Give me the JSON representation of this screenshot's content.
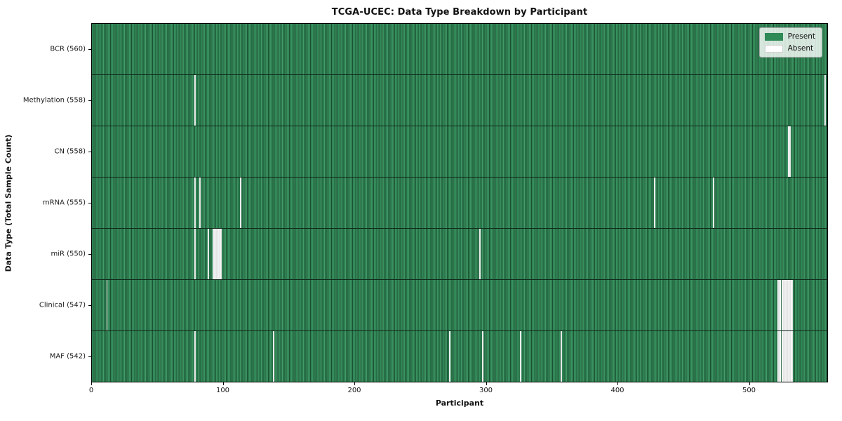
{
  "title": "TCGA-UCEC: Data Type Breakdown by Participant",
  "axes": {
    "xlabel": "Participant",
    "ylabel": "Data Type (Total Sample Count)"
  },
  "legend": [
    {
      "label": "Present",
      "color": "#2e8b57"
    },
    {
      "label": "Absent",
      "color": "#ffffff"
    }
  ],
  "colors": {
    "present_fill": "#2e8b57",
    "cell_edge": "#1a4f31",
    "absent_fill": "#ffffff",
    "row_divider": "#10291a",
    "axes_border": "#000000"
  },
  "chart_data": {
    "type": "heatmap",
    "title": "TCGA-UCEC: Data Type Breakdown by Participant",
    "xlabel": "Participant",
    "ylabel": "Data Type (Total Sample Count)",
    "legend_position": "upper right",
    "n_participants": 560,
    "xlim": [
      0,
      560
    ],
    "x_ticks": [
      0,
      100,
      200,
      300,
      400,
      500
    ],
    "cell_values": "1 = Present (green), 0 = Absent (white)",
    "rows": [
      {
        "label": "BCR (560)",
        "data_type": "BCR",
        "present_count": 560,
        "absent_participants": []
      },
      {
        "label": "Methylation (558)",
        "data_type": "Methylation",
        "present_count": 558,
        "absent_participants": [
          78,
          558
        ]
      },
      {
        "label": "CN (558)",
        "data_type": "CN",
        "present_count": 558,
        "absent_participants": [
          530,
          531
        ]
      },
      {
        "label": "mRNA (555)",
        "data_type": "mRNA",
        "present_count": 555,
        "absent_participants": [
          78,
          82,
          113,
          428,
          473
        ]
      },
      {
        "label": "miR (550)",
        "data_type": "miR",
        "present_count": 550,
        "absent_participants": [
          78,
          88,
          92,
          93,
          94,
          95,
          96,
          97,
          98,
          295
        ]
      },
      {
        "label": "Clinical (547)",
        "data_type": "Clinical",
        "present_count": 547,
        "absent_participants": [
          11,
          522,
          523,
          524,
          525,
          526,
          527,
          528,
          529,
          530,
          531,
          532,
          533
        ]
      },
      {
        "label": "MAF (542)",
        "data_type": "MAF",
        "present_count": 542,
        "absent_participants": [
          78,
          138,
          272,
          297,
          326,
          357,
          522,
          523,
          524,
          525,
          526,
          527,
          528,
          529,
          530,
          531,
          532,
          533
        ]
      }
    ]
  }
}
